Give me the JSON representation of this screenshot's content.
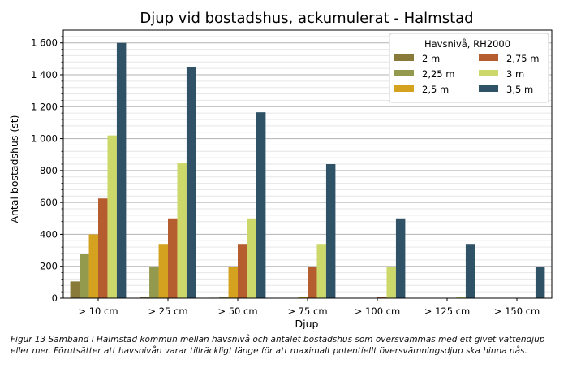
{
  "chart_data": {
    "type": "bar",
    "title": "Djup vid bostadshus, ackumulerat - Halmstad",
    "xlabel": "Djup",
    "ylabel": "Antal bostadshus (st)",
    "ylim": [
      0,
      1680
    ],
    "yticks": [
      0,
      200,
      400,
      600,
      800,
      1000,
      1200,
      1400,
      1600
    ],
    "ytick_labels": [
      "0",
      "200",
      "400",
      "600",
      "800",
      "1 000",
      "1 200",
      "1 400",
      "1 600"
    ],
    "grid": "horizontal major and minor lines",
    "categories": [
      "> 10 cm",
      "> 25 cm",
      "> 50 cm",
      "> 75 cm",
      "> 100 cm",
      "> 125 cm",
      "> 150 cm"
    ],
    "legend": {
      "title": "Havsnivå, RH2000",
      "placement": "top-right",
      "columns": 2
    },
    "series": [
      {
        "name": "2 m",
        "color": "#8a7a3a",
        "values": [
          105,
          5,
          3,
          1,
          0,
          0,
          0
        ]
      },
      {
        "name": "2,25 m",
        "color": "#939a4e",
        "values": [
          280,
          195,
          5,
          2,
          0,
          0,
          0
        ]
      },
      {
        "name": "2,5 m",
        "color": "#d4a21e",
        "values": [
          400,
          340,
          195,
          5,
          2,
          0,
          0
        ]
      },
      {
        "name": "2,75 m",
        "color": "#b55d2e",
        "values": [
          625,
          500,
          340,
          195,
          5,
          2,
          0
        ]
      },
      {
        "name": "3 m",
        "color": "#cdd86a",
        "values": [
          1020,
          845,
          500,
          340,
          195,
          5,
          2
        ]
      },
      {
        "name": "3,5 m",
        "color": "#2f5266",
        "values": [
          1600,
          1450,
          1165,
          840,
          500,
          340,
          195
        ]
      }
    ]
  },
  "caption": "Figur 13 Samband i Halmstad kommun mellan havsnivå och antalet bostadshus som översvämmas med ett givet vattendjup eller mer. Förutsätter att havsnivån varar tillräckligt länge för att maximalt potentiellt översvämningsdjup ska hinna nås."
}
